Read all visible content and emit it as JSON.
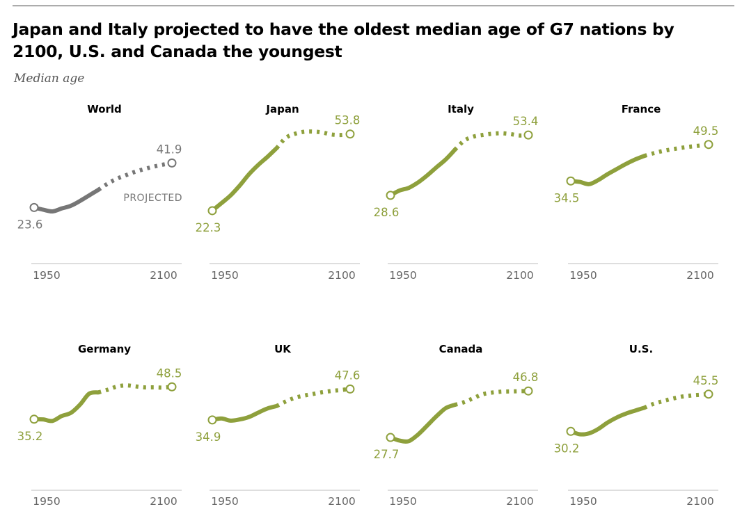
{
  "title": "Japan and Italy projected to have the oldest median age of G7 nations by 2100, U.S. and Canada the youngest",
  "subtitle": "Median age",
  "colors": {
    "world": "#767676",
    "g7": "#8ea03c",
    "axis": "#c9c9c9",
    "tick_text": "#666666",
    "panel_title": "#000000"
  },
  "chart_data": [
    {
      "type": "line",
      "title": "World",
      "color_key": "world",
      "x_range": [
        1950,
        2100
      ],
      "y_range": [
        18,
        56
      ],
      "xticks": [
        "1950",
        "2100"
      ],
      "projection_start": 2020,
      "annotation": "PROJECTED",
      "start_label": "23.6",
      "end_label": "41.9",
      "x": [
        1950,
        1960,
        1970,
        1980,
        1990,
        2000,
        2010,
        2020,
        2030,
        2040,
        2050,
        2060,
        2070,
        2080,
        2090,
        2100
      ],
      "y": [
        23.6,
        22.7,
        22.0,
        23.2,
        24.3,
        26.3,
        28.6,
        30.9,
        33.4,
        35.4,
        36.9,
        38.3,
        39.4,
        40.4,
        41.2,
        41.9
      ]
    },
    {
      "type": "line",
      "title": "Japan",
      "color_key": "g7",
      "x_range": [
        1950,
        2100
      ],
      "y_range": [
        18,
        56
      ],
      "xticks": [
        "1950",
        "2100"
      ],
      "projection_start": 2020,
      "start_label": "22.3",
      "end_label": "53.8",
      "x": [
        1950,
        1960,
        1970,
        1980,
        1990,
        2000,
        2010,
        2020,
        2030,
        2040,
        2050,
        2060,
        2070,
        2080,
        2090,
        2100
      ],
      "y": [
        22.3,
        25.4,
        28.6,
        32.7,
        37.3,
        41.1,
        44.4,
        48.0,
        52.2,
        53.9,
        54.7,
        54.8,
        54.4,
        53.6,
        53.4,
        53.8
      ]
    },
    {
      "type": "line",
      "title": "Italy",
      "color_key": "g7",
      "x_range": [
        1950,
        2100
      ],
      "y_range": [
        18,
        56
      ],
      "xticks": [
        "1950",
        "2100"
      ],
      "projection_start": 2020,
      "start_label": "28.6",
      "end_label": "53.4",
      "x": [
        1950,
        1960,
        1970,
        1980,
        1990,
        2000,
        2010,
        2020,
        2030,
        2040,
        2050,
        2060,
        2070,
        2080,
        2090,
        2100
      ],
      "y": [
        28.6,
        30.6,
        31.7,
        33.9,
        36.8,
        40.1,
        43.3,
        47.3,
        51.0,
        52.7,
        53.4,
        53.9,
        54.1,
        53.8,
        53.2,
        53.4
      ]
    },
    {
      "type": "line",
      "title": "France",
      "color_key": "g7",
      "x_range": [
        1950,
        2100
      ],
      "y_range": [
        18,
        56
      ],
      "xticks": [
        "1950",
        "2100"
      ],
      "projection_start": 2030,
      "start_label": "34.5",
      "end_label": "49.5",
      "x": [
        1950,
        1960,
        1970,
        1980,
        1990,
        2000,
        2010,
        2020,
        2030,
        2040,
        2050,
        2060,
        2070,
        2080,
        2090,
        2100
      ],
      "y": [
        34.5,
        34.1,
        33.2,
        34.9,
        37.3,
        39.4,
        41.5,
        43.3,
        44.8,
        45.9,
        46.8,
        47.5,
        48.1,
        48.6,
        49.0,
        49.5
      ]
    },
    {
      "type": "line",
      "title": "Germany",
      "color_key": "g7",
      "x_range": [
        1950,
        2100
      ],
      "y_range": [
        18,
        56
      ],
      "xticks": [
        "1950",
        "2100"
      ],
      "projection_start": 2020,
      "start_label": "35.2",
      "end_label": "48.5",
      "x": [
        1950,
        1960,
        1970,
        1980,
        1990,
        2000,
        2010,
        2020,
        2030,
        2040,
        2050,
        2060,
        2070,
        2080,
        2090,
        2100
      ],
      "y": [
        35.2,
        35.1,
        34.5,
        36.5,
        37.8,
        41.2,
        45.7,
        46.2,
        47.3,
        48.6,
        49.1,
        48.7,
        48.3,
        48.3,
        48.2,
        48.5
      ]
    },
    {
      "type": "line",
      "title": "UK",
      "color_key": "g7",
      "x_range": [
        1950,
        2100
      ],
      "y_range": [
        18,
        56
      ],
      "xticks": [
        "1950",
        "2100"
      ],
      "projection_start": 2020,
      "start_label": "34.9",
      "end_label": "47.6",
      "x": [
        1950,
        1960,
        1970,
        1980,
        1990,
        2000,
        2010,
        2020,
        2030,
        2040,
        2050,
        2060,
        2070,
        2080,
        2090,
        2100
      ],
      "y": [
        34.9,
        35.5,
        34.6,
        35.1,
        36.1,
        37.9,
        39.6,
        40.6,
        42.5,
        44.0,
        44.9,
        45.6,
        46.3,
        46.8,
        47.2,
        47.6
      ]
    },
    {
      "type": "line",
      "title": "Canada",
      "color_key": "g7",
      "x_range": [
        1950,
        2100
      ],
      "y_range": [
        18,
        56
      ],
      "xticks": [
        "1950",
        "2100"
      ],
      "projection_start": 2020,
      "start_label": "27.7",
      "end_label": "46.8",
      "x": [
        1950,
        1960,
        1970,
        1980,
        1990,
        2000,
        2010,
        2020,
        2030,
        2040,
        2050,
        2060,
        2070,
        2080,
        2090,
        2100
      ],
      "y": [
        27.7,
        26.4,
        26.2,
        28.9,
        32.6,
        36.4,
        39.7,
        41.1,
        42.2,
        43.8,
        45.4,
        46.1,
        46.5,
        46.6,
        46.7,
        46.8
      ]
    },
    {
      "type": "line",
      "title": "U.S.",
      "color_key": "g7",
      "x_range": [
        1950,
        2100
      ],
      "y_range": [
        18,
        56
      ],
      "xticks": [
        "1950",
        "2100"
      ],
      "projection_start": 2030,
      "start_label": "30.2",
      "end_label": "45.5",
      "x": [
        1950,
        1960,
        1970,
        1980,
        1990,
        2000,
        2010,
        2020,
        2030,
        2040,
        2050,
        2060,
        2070,
        2080,
        2090,
        2100
      ],
      "y": [
        30.2,
        29.0,
        29.4,
        31.2,
        33.8,
        35.9,
        37.5,
        38.7,
        39.9,
        41.5,
        42.6,
        43.6,
        44.4,
        44.9,
        45.2,
        45.5
      ]
    }
  ]
}
